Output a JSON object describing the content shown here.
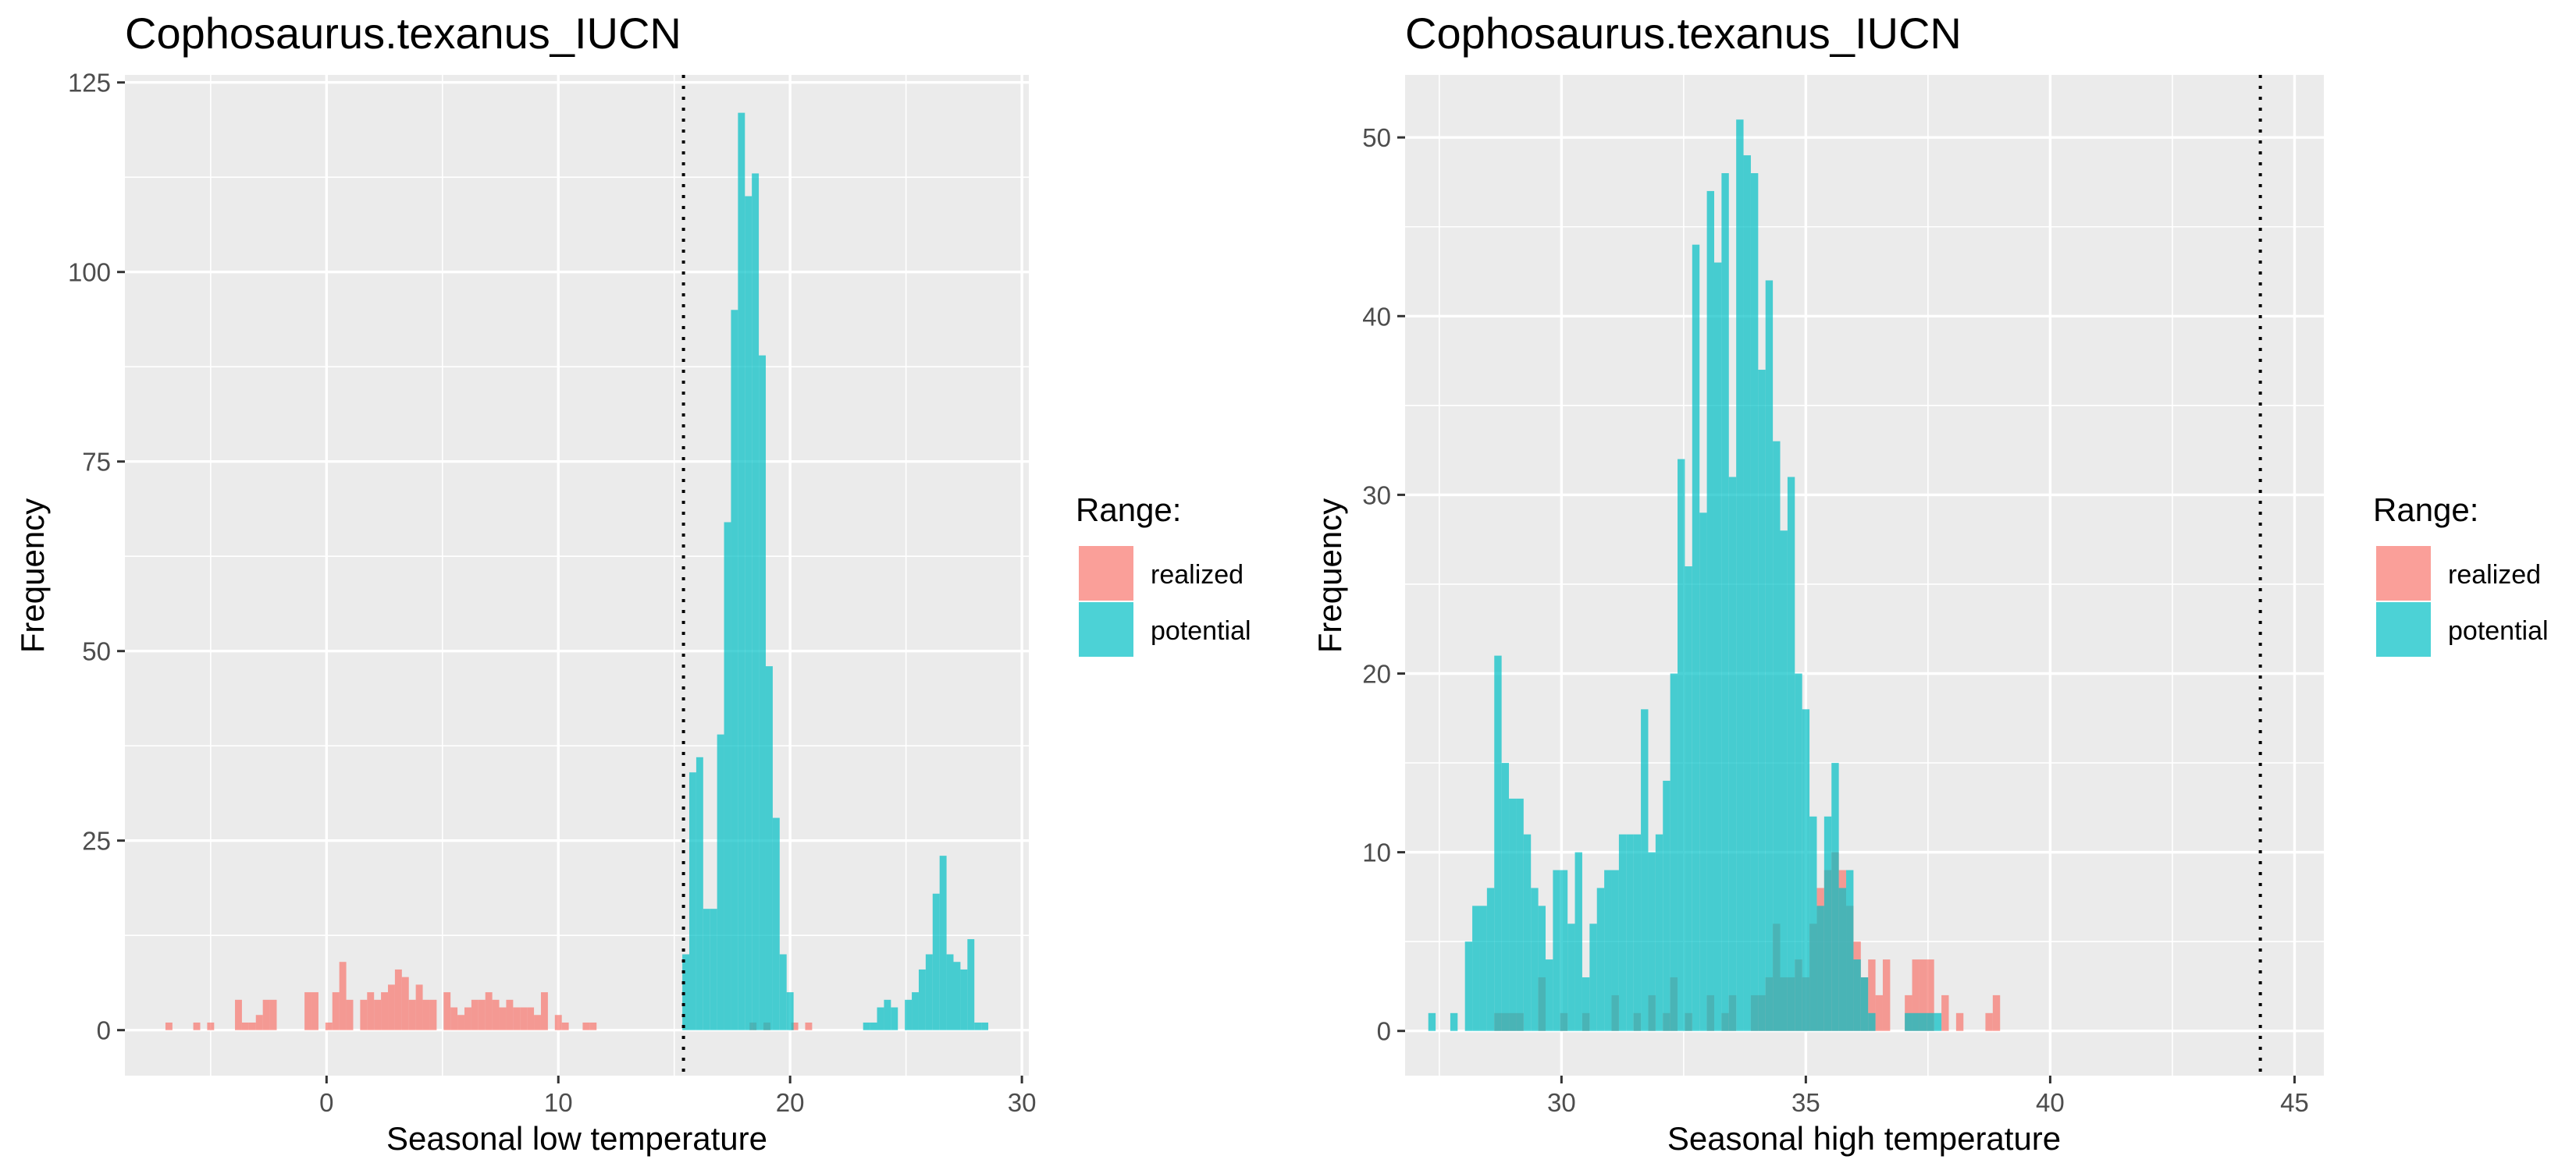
{
  "chart_data": [
    {
      "type": "bar",
      "title": "Cophosaurus.texanus_IUCN",
      "xlabel": "Seasonal low temperature",
      "ylabel": "Frequency",
      "xlim": [
        -8.7,
        30.3
      ],
      "ylim": [
        -6,
        126
      ],
      "x_ticks": [
        0,
        10,
        20,
        30
      ],
      "y_ticks": [
        0,
        25,
        50,
        75,
        100,
        125
      ],
      "x_tick_labels": [
        "0",
        "10",
        "20",
        "30"
      ],
      "y_tick_labels": [
        "0",
        "25",
        "50",
        "75",
        "100",
        "125"
      ],
      "vline": 15.4,
      "bin_width": 0.3,
      "grid": true,
      "legend": {
        "title": "Range:",
        "position": "right",
        "entries": [
          {
            "label": "realized",
            "color": "#F8766D"
          },
          {
            "label": "potential",
            "color": "#00BFC4"
          }
        ]
      },
      "series": [
        {
          "name": "realized",
          "color": "#F8766D",
          "bins": [
            [
              -6.8,
              1
            ],
            [
              -5.6,
              1
            ],
            [
              -5.0,
              1
            ],
            [
              -3.8,
              4
            ],
            [
              -3.5,
              1
            ],
            [
              -3.2,
              1
            ],
            [
              -2.9,
              2
            ],
            [
              -2.6,
              4
            ],
            [
              -2.3,
              4
            ],
            [
              -0.8,
              5
            ],
            [
              -0.5,
              5
            ],
            [
              0.1,
              1
            ],
            [
              0.4,
              5
            ],
            [
              0.7,
              9
            ],
            [
              1.0,
              4
            ],
            [
              1.6,
              4
            ],
            [
              1.9,
              5
            ],
            [
              2.2,
              4
            ],
            [
              2.5,
              5
            ],
            [
              2.8,
              6
            ],
            [
              3.1,
              8
            ],
            [
              3.4,
              7
            ],
            [
              3.7,
              4
            ],
            [
              4.0,
              6
            ],
            [
              4.3,
              4
            ],
            [
              4.6,
              4
            ],
            [
              5.2,
              5
            ],
            [
              5.5,
              3
            ],
            [
              5.8,
              2
            ],
            [
              6.1,
              3
            ],
            [
              6.4,
              4
            ],
            [
              6.7,
              4
            ],
            [
              7.0,
              5
            ],
            [
              7.3,
              4
            ],
            [
              7.6,
              3
            ],
            [
              7.9,
              4
            ],
            [
              8.2,
              3
            ],
            [
              8.5,
              3
            ],
            [
              8.8,
              3
            ],
            [
              9.1,
              2
            ],
            [
              9.4,
              5
            ],
            [
              10.0,
              2
            ],
            [
              10.3,
              1
            ],
            [
              11.2,
              1
            ],
            [
              11.5,
              1
            ],
            [
              18.4,
              1
            ],
            [
              19.0,
              1
            ],
            [
              20.2,
              1
            ],
            [
              20.8,
              1
            ]
          ]
        },
        {
          "name": "potential",
          "color": "#00BFC4",
          "bins": [
            [
              15.5,
              10
            ],
            [
              15.8,
              34
            ],
            [
              16.1,
              36
            ],
            [
              16.4,
              16
            ],
            [
              16.7,
              16
            ],
            [
              17.0,
              39
            ],
            [
              17.3,
              67
            ],
            [
              17.6,
              95
            ],
            [
              17.9,
              121
            ],
            [
              18.2,
              110
            ],
            [
              18.5,
              113
            ],
            [
              18.8,
              89
            ],
            [
              19.1,
              48
            ],
            [
              19.4,
              28
            ],
            [
              19.7,
              10
            ],
            [
              20.0,
              5
            ],
            [
              23.3,
              1
            ],
            [
              23.6,
              1
            ],
            [
              23.9,
              3
            ],
            [
              24.2,
              4
            ],
            [
              24.5,
              3
            ],
            [
              25.1,
              4
            ],
            [
              25.4,
              5
            ],
            [
              25.7,
              8
            ],
            [
              26.0,
              10
            ],
            [
              26.3,
              18
            ],
            [
              26.6,
              23
            ],
            [
              26.9,
              10
            ],
            [
              27.2,
              9
            ],
            [
              27.5,
              8
            ],
            [
              27.8,
              12
            ],
            [
              28.1,
              1
            ],
            [
              28.4,
              1
            ]
          ]
        }
      ]
    },
    {
      "type": "bar",
      "title": "Cophosaurus.texanus_IUCN",
      "xlabel": "Seasonal high temperature",
      "ylabel": "Frequency",
      "xlim": [
        26.8,
        45.6
      ],
      "ylim": [
        -2.5,
        53.5
      ],
      "x_ticks": [
        30,
        35,
        40,
        45
      ],
      "y_ticks": [
        0,
        10,
        20,
        30,
        40,
        50
      ],
      "x_tick_labels": [
        "30",
        "35",
        "40",
        "45"
      ],
      "y_tick_labels": [
        "0",
        "10",
        "20",
        "30",
        "40",
        "50"
      ],
      "vline": 44.3,
      "bin_width": 0.15,
      "grid": true,
      "legend": {
        "title": "Range:",
        "position": "right",
        "entries": [
          {
            "label": "realized",
            "color": "#F8766D"
          },
          {
            "label": "potential",
            "color": "#00BFC4"
          }
        ]
      },
      "series": [
        {
          "name": "realized",
          "color": "#F8766D",
          "bins": [
            [
              28.7,
              1
            ],
            [
              28.85,
              1
            ],
            [
              29.0,
              1
            ],
            [
              29.15,
              1
            ],
            [
              29.6,
              3
            ],
            [
              30.05,
              1
            ],
            [
              30.5,
              1
            ],
            [
              31.1,
              2
            ],
            [
              31.55,
              1
            ],
            [
              31.85,
              2
            ],
            [
              32.15,
              1
            ],
            [
              32.3,
              3
            ],
            [
              32.6,
              1
            ],
            [
              33.05,
              2
            ],
            [
              33.35,
              1
            ],
            [
              33.5,
              2
            ],
            [
              33.95,
              2
            ],
            [
              34.1,
              2
            ],
            [
              34.25,
              3
            ],
            [
              34.4,
              6
            ],
            [
              34.55,
              3
            ],
            [
              34.7,
              3
            ],
            [
              34.85,
              4
            ],
            [
              35.0,
              3
            ],
            [
              35.15,
              6
            ],
            [
              35.3,
              8
            ],
            [
              35.45,
              9
            ],
            [
              35.6,
              10
            ],
            [
              35.75,
              9
            ],
            [
              35.9,
              7
            ],
            [
              36.05,
              5
            ],
            [
              36.2,
              3
            ],
            [
              36.35,
              4
            ],
            [
              36.5,
              2
            ],
            [
              36.65,
              4
            ],
            [
              37.1,
              2
            ],
            [
              37.25,
              4
            ],
            [
              37.4,
              4
            ],
            [
              37.55,
              4
            ],
            [
              37.85,
              2
            ],
            [
              38.15,
              1
            ],
            [
              38.75,
              1
            ],
            [
              38.9,
              2
            ]
          ]
        },
        {
          "name": "potential",
          "color": "#00BFC4",
          "bins": [
            [
              27.35,
              1
            ],
            [
              27.8,
              1
            ],
            [
              28.1,
              5
            ],
            [
              28.25,
              7
            ],
            [
              28.4,
              7
            ],
            [
              28.55,
              8
            ],
            [
              28.7,
              21
            ],
            [
              28.85,
              15
            ],
            [
              29.0,
              13
            ],
            [
              29.15,
              13
            ],
            [
              29.3,
              11
            ],
            [
              29.45,
              8
            ],
            [
              29.6,
              7
            ],
            [
              29.75,
              4
            ],
            [
              29.9,
              9
            ],
            [
              30.05,
              9
            ],
            [
              30.2,
              6
            ],
            [
              30.35,
              10
            ],
            [
              30.5,
              3
            ],
            [
              30.65,
              6
            ],
            [
              30.8,
              8
            ],
            [
              30.95,
              9
            ],
            [
              31.1,
              9
            ],
            [
              31.25,
              11
            ],
            [
              31.4,
              11
            ],
            [
              31.55,
              11
            ],
            [
              31.7,
              18
            ],
            [
              31.85,
              10
            ],
            [
              32.0,
              11
            ],
            [
              32.15,
              14
            ],
            [
              32.3,
              20
            ],
            [
              32.45,
              32
            ],
            [
              32.6,
              26
            ],
            [
              32.75,
              44
            ],
            [
              32.9,
              29
            ],
            [
              33.05,
              47
            ],
            [
              33.2,
              43
            ],
            [
              33.35,
              48
            ],
            [
              33.5,
              31
            ],
            [
              33.65,
              51
            ],
            [
              33.8,
              49
            ],
            [
              33.95,
              48
            ],
            [
              34.1,
              37
            ],
            [
              34.25,
              42
            ],
            [
              34.4,
              33
            ],
            [
              34.55,
              28
            ],
            [
              34.7,
              31
            ],
            [
              34.85,
              20
            ],
            [
              35.0,
              18
            ],
            [
              35.15,
              12
            ],
            [
              35.3,
              7
            ],
            [
              35.45,
              12
            ],
            [
              35.6,
              15
            ],
            [
              35.75,
              8
            ],
            [
              35.9,
              9
            ],
            [
              36.05,
              4
            ],
            [
              36.2,
              3
            ],
            [
              36.35,
              1
            ],
            [
              37.1,
              1
            ],
            [
              37.25,
              1
            ],
            [
              37.4,
              1
            ],
            [
              37.55,
              1
            ],
            [
              37.7,
              1
            ]
          ]
        }
      ]
    }
  ]
}
